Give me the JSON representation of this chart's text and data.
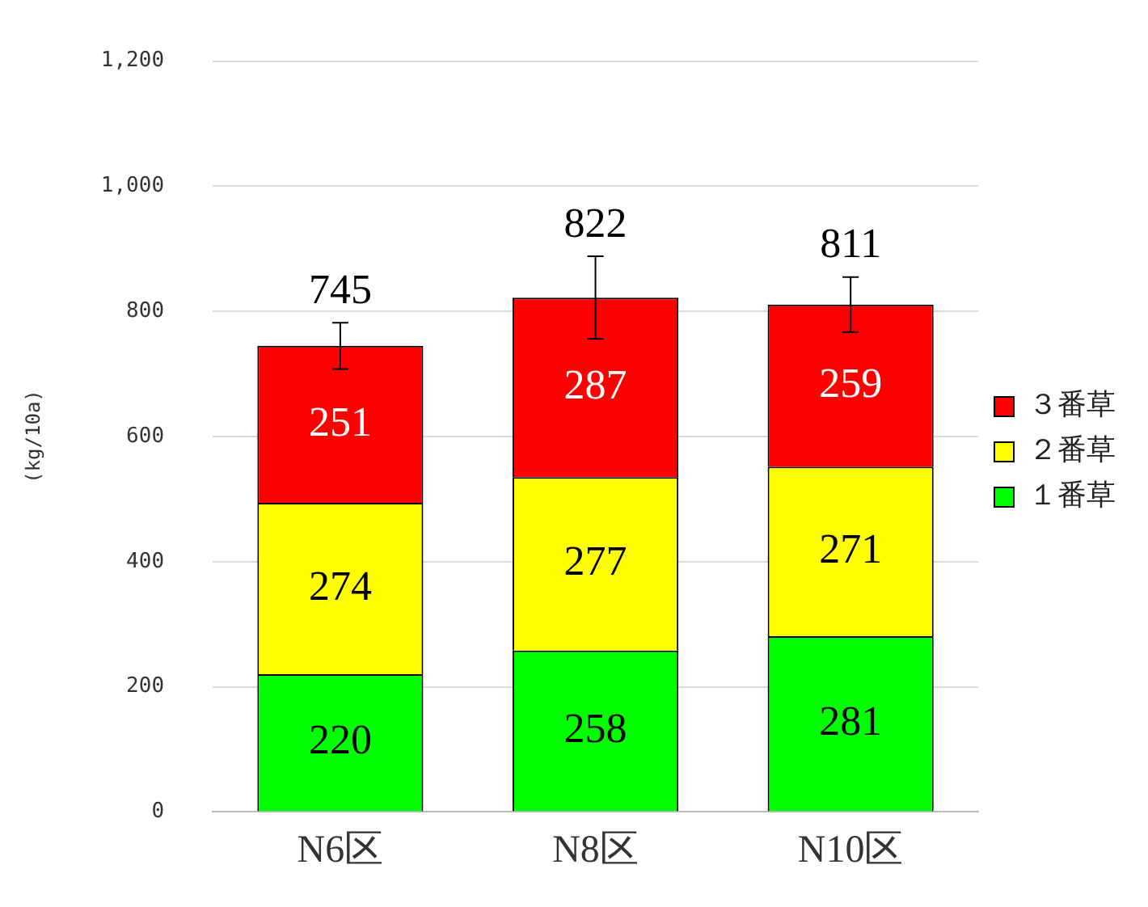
{
  "chart_data": {
    "type": "bar",
    "stacked": true,
    "categories": [
      "N6区",
      "N8区",
      "N10区"
    ],
    "series": [
      {
        "name": "１番草",
        "color": "#00ff00",
        "values": [
          220,
          258,
          281
        ]
      },
      {
        "name": "２番草",
        "color": "#ffff00",
        "values": [
          274,
          277,
          271
        ]
      },
      {
        "name": "３番草",
        "color": "#ff0000",
        "values": [
          251,
          287,
          259
        ],
        "errors": [
          37,
          66,
          44
        ]
      }
    ],
    "totals": [
      "745",
      "822",
      "811"
    ],
    "data_labels": true,
    "ylabel": "(kg/10a)",
    "ylim": [
      0,
      1200
    ],
    "yticks": [
      0,
      {
        "value": 200,
        "label": "200"
      },
      400,
      600,
      800,
      {
        "value": 1000,
        "label": "1,000"
      },
      {
        "value": 1200,
        "label": "1,200"
      }
    ],
    "grid": "y",
    "legend": "right"
  }
}
